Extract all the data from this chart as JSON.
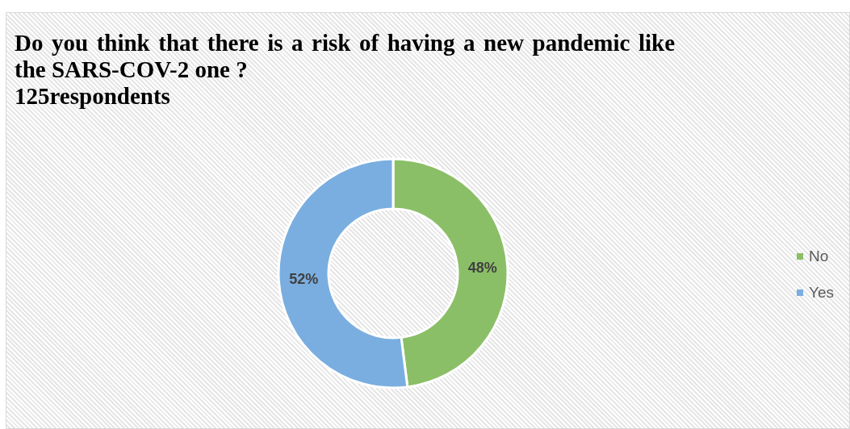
{
  "chart_data": {
    "type": "donut",
    "title": "Do you think that there is a risk of having a new pandemic like the SARS-COV-2 one ?",
    "subtitle": "125respondents",
    "categories": [
      "No",
      "Yes"
    ],
    "values": [
      48,
      52
    ],
    "colors": [
      "#8bbf67",
      "#7aaee0"
    ],
    "value_labels": [
      "48%",
      "52%"
    ],
    "legend": "right"
  }
}
